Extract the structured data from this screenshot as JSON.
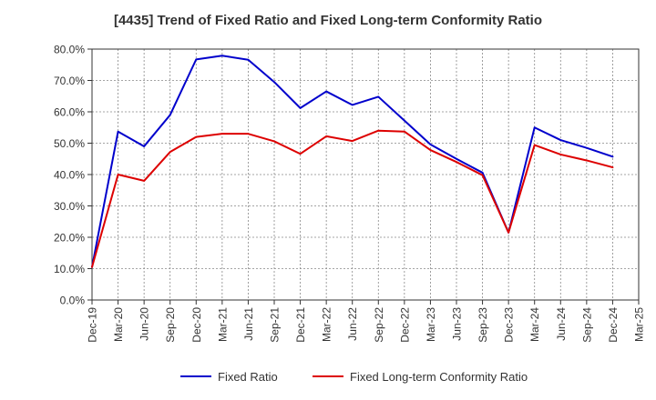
{
  "chart_data": {
    "type": "line",
    "title": "[4435]  Trend of Fixed Ratio and Fixed Long-term Conformity Ratio",
    "xlabel": "",
    "ylabel": "",
    "ylim": [
      0,
      80
    ],
    "y_ticks": [
      0,
      10,
      20,
      30,
      40,
      50,
      60,
      70,
      80
    ],
    "y_tick_labels": [
      "0.0%",
      "10.0%",
      "20.0%",
      "30.0%",
      "40.0%",
      "50.0%",
      "60.0%",
      "70.0%",
      "80.0%"
    ],
    "x_tick_labels": [
      "Dec-19",
      "Mar-20",
      "Jun-20",
      "Sep-20",
      "Dec-20",
      "Mar-21",
      "Jun-21",
      "Sep-21",
      "Dec-21",
      "Mar-22",
      "Jun-22",
      "Sep-22",
      "Dec-22",
      "Mar-23",
      "Jun-23",
      "Sep-23",
      "Dec-23",
      "Mar-24",
      "Jun-24",
      "Sep-24",
      "Dec-24",
      "Mar-25"
    ],
    "categories": [
      "Dec-19",
      "Mar-20",
      "Jun-20",
      "Sep-20",
      "Dec-20",
      "Mar-21",
      "Jun-21",
      "Sep-21",
      "Dec-21",
      "Mar-22",
      "Jun-22",
      "Sep-22",
      "Dec-22",
      "Mar-23",
      "Jun-23",
      "Sep-23",
      "Dec-23",
      "Mar-24",
      "Jun-24",
      "Sep-24",
      "Dec-24"
    ],
    "grid": true,
    "legend_position": "bottom",
    "series": [
      {
        "name": "Fixed Ratio",
        "color": "#0000cc",
        "values": [
          10.5,
          53.7,
          49.0,
          59.0,
          76.7,
          77.9,
          76.6,
          69.5,
          61.2,
          66.5,
          62.2,
          64.8,
          57.2,
          49.6,
          45.0,
          40.6,
          21.5,
          55.0,
          51.0,
          48.5,
          45.7
        ]
      },
      {
        "name": "Fixed Long-term Conformity Ratio",
        "color": "#dd0000",
        "values": [
          10.5,
          40.0,
          38.0,
          47.2,
          52.0,
          53.0,
          53.0,
          50.6,
          46.6,
          52.2,
          50.7,
          54.0,
          53.7,
          47.8,
          44.0,
          39.8,
          21.5,
          49.4,
          46.4,
          44.5,
          42.3
        ]
      }
    ]
  }
}
